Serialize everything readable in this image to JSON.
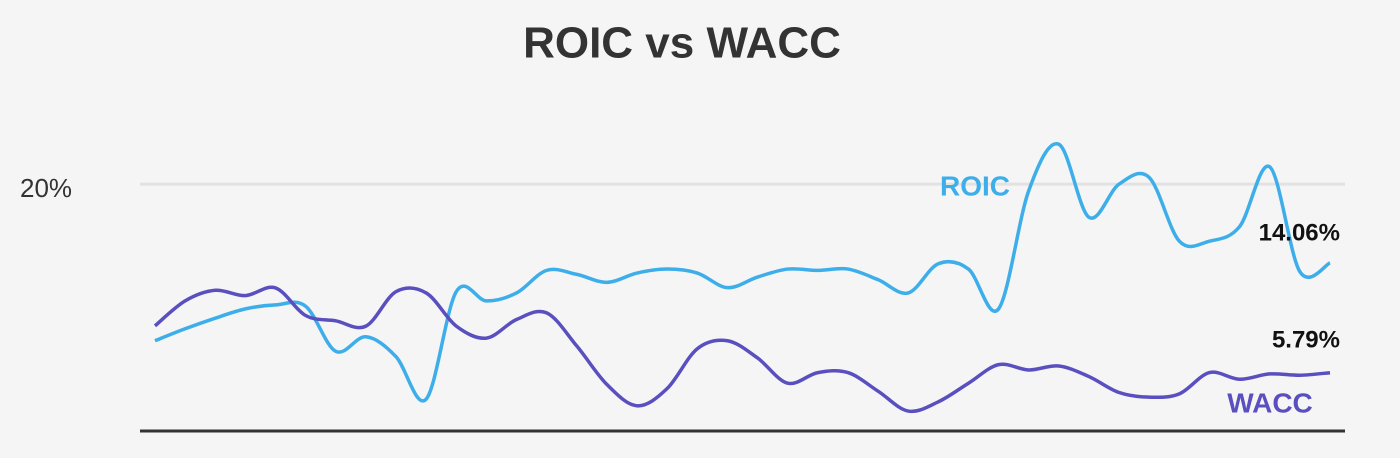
{
  "chart_data": {
    "type": "line",
    "title": "ROIC vs WACC",
    "categories": [
      null,
      null,
      null,
      null,
      null,
      null,
      null,
      null,
      null,
      null,
      null,
      null,
      null,
      null,
      null,
      null,
      null,
      null,
      null,
      null,
      null,
      null,
      null,
      null,
      null,
      null,
      null,
      null,
      null,
      null,
      null,
      null,
      null,
      null,
      null,
      null,
      null,
      null,
      null,
      null
    ],
    "ylim": [
      1.4,
      24
    ],
    "yticks": [
      {
        "value": 20,
        "label": "20%"
      }
    ],
    "grid": true,
    "series": [
      {
        "name": "ROIC",
        "color": "#3daee9",
        "values": [
          8.2,
          9.1,
          9.9,
          10.6,
          10.9,
          10.8,
          7.4,
          8.5,
          7.0,
          3.8,
          11.9,
          11.2,
          11.8,
          13.5,
          13.2,
          12.6,
          13.3,
          13.6,
          13.3,
          12.2,
          13.0,
          13.6,
          13.5,
          13.6,
          12.8,
          11.8,
          14.0,
          13.6,
          10.6,
          19.5,
          23.0,
          17.5,
          20.0,
          20.5,
          15.7,
          15.7,
          16.8,
          21.3,
          13.4,
          14.06
        ],
        "value_labels": [
          null,
          null,
          null,
          null,
          null,
          null,
          null,
          null,
          null,
          null,
          null,
          null,
          null,
          null,
          null,
          null,
          null,
          null,
          null,
          null,
          null,
          null,
          null,
          null,
          null,
          null,
          null,
          null,
          null,
          null,
          null,
          null,
          null,
          null,
          null,
          null,
          null,
          null,
          null,
          "14.06%"
        ]
      },
      {
        "name": "WACC",
        "color": "#5a4fbf",
        "values": [
          9.32,
          11.2,
          12.0,
          11.6,
          12.18,
          10.1,
          9.7,
          9.3,
          11.9,
          11.8,
          9.3,
          8.4,
          9.8,
          10.3,
          7.8,
          4.9,
          3.3,
          4.6,
          7.6,
          8.2,
          6.9,
          5.0,
          5.8,
          5.8,
          4.4,
          2.9,
          3.6,
          5.0,
          6.4,
          6.0,
          6.3,
          5.5,
          4.3,
          3.95,
          4.2,
          5.8,
          5.3,
          5.7,
          5.6,
          5.79
        ],
        "value_labels": [
          null,
          null,
          null,
          null,
          null,
          null,
          null,
          null,
          null,
          null,
          null,
          null,
          null,
          null,
          null,
          null,
          null,
          null,
          null,
          null,
          null,
          null,
          null,
          null,
          null,
          null,
          null,
          null,
          null,
          null,
          null,
          null,
          null,
          null,
          null,
          null,
          null,
          null,
          null,
          "5.79%"
        ]
      }
    ]
  }
}
